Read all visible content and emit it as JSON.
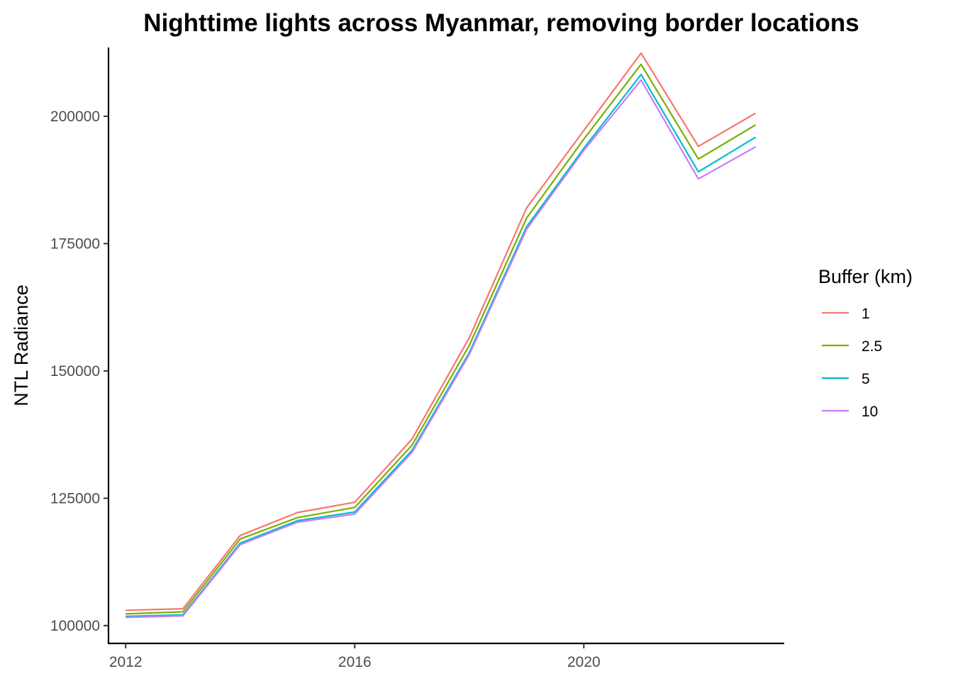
{
  "chart_data": {
    "type": "line",
    "title": "Nighttime lights across Myanmar, removing border locations",
    "xlabel": "",
    "ylabel": "NTL Radiance",
    "x": [
      2012,
      2013,
      2014,
      2015,
      2016,
      2017,
      2018,
      2019,
      2020,
      2021,
      2022,
      2023
    ],
    "xlim": [
      2011.7,
      2023.5
    ],
    "ylim": [
      96500,
      213500
    ],
    "x_ticks": [
      2012,
      2016,
      2020
    ],
    "y_ticks": [
      100000,
      125000,
      150000,
      175000,
      200000
    ],
    "legend": {
      "title": "Buffer (km)",
      "position": "right"
    },
    "grid": false,
    "series": [
      {
        "name": "1",
        "color": "#F8766D",
        "values": [
          103000,
          103300,
          117700,
          122200,
          124200,
          136600,
          156500,
          182000,
          197200,
          212400,
          194100,
          200600
        ]
      },
      {
        "name": "2.5",
        "color": "#7CAE00",
        "values": [
          102300,
          102700,
          117000,
          121200,
          123200,
          135400,
          155000,
          180000,
          195500,
          210200,
          191600,
          198300
        ]
      },
      {
        "name": "5",
        "color": "#00BFC4",
        "values": [
          101800,
          102100,
          116200,
          120600,
          122300,
          134400,
          153600,
          178300,
          193700,
          208200,
          189100,
          195900
        ]
      },
      {
        "name": "10",
        "color": "#C77CFF",
        "values": [
          101600,
          101900,
          115900,
          120300,
          121900,
          134000,
          153200,
          177800,
          193300,
          207100,
          187700,
          194000
        ]
      }
    ]
  }
}
